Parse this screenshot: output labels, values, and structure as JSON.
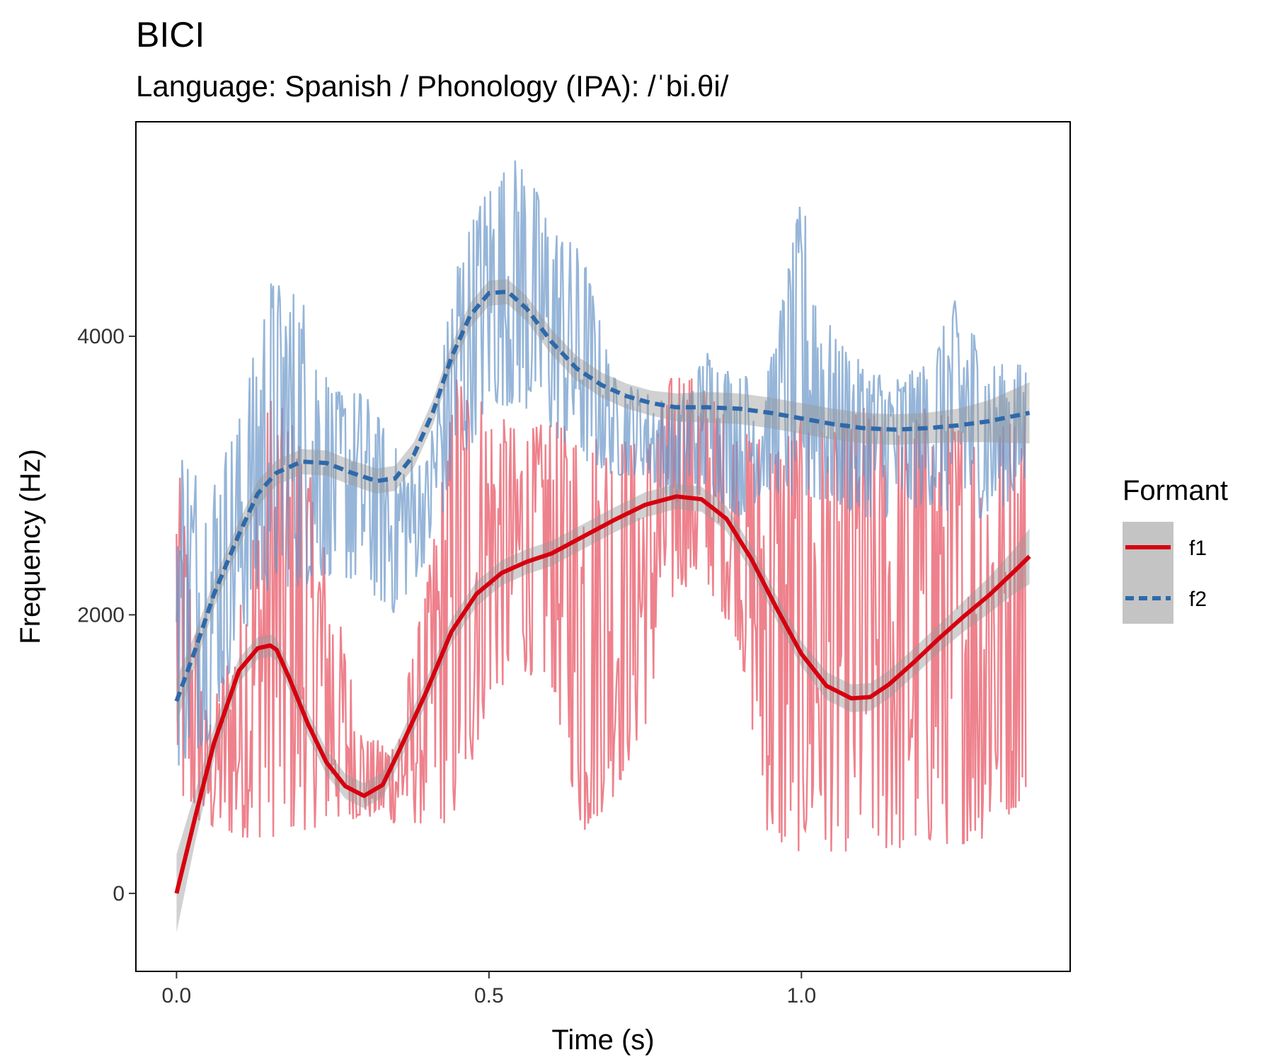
{
  "chart_data": {
    "type": "line",
    "title": "BICI",
    "subtitle": "Language: Spanish / Phonology (IPA): /ˈbi.θi/",
    "xlabel": "Time (s)",
    "ylabel": "Frequency (Hz)",
    "xlim": [
      -0.065,
      1.43
    ],
    "ylim": [
      -560,
      5540
    ],
    "x_ticks": [
      0.0,
      0.5,
      1.0
    ],
    "x_tick_labels": [
      "0.0",
      "0.5",
      "1.0"
    ],
    "y_ticks": [
      0,
      2000,
      4000
    ],
    "y_tick_labels": [
      "0",
      "2000",
      "4000"
    ],
    "grid": false,
    "legend": {
      "title": "Formant",
      "position": "right",
      "entries": [
        "f1",
        "f2"
      ]
    },
    "colors": {
      "f1": "#d7000f",
      "f2": "#2e69aa",
      "f1_raw": "#e8505f",
      "f2_raw": "#6a96c8",
      "band": "#999999"
    },
    "series": [
      {
        "name": "f1",
        "line_style": "solid",
        "raw_envelope": {
          "x": [
            0.0,
            0.05,
            0.1,
            0.15,
            0.2,
            0.25,
            0.3,
            0.35,
            0.4,
            0.45,
            0.5,
            0.55,
            0.6,
            0.65,
            0.7,
            0.75,
            0.8,
            0.85,
            0.9,
            0.95,
            1.0,
            1.05,
            1.1,
            1.15,
            1.2,
            1.25,
            1.3,
            1.36
          ],
          "low": [
            600,
            450,
            400,
            400,
            450,
            500,
            550,
            500,
            500,
            500,
            1400,
            1600,
            1500,
            400,
            700,
            1200,
            2200,
            2200,
            1800,
            300,
            300,
            300,
            300,
            300,
            350,
            350,
            400,
            700
          ],
          "high": [
            3200,
            1200,
            2000,
            3600,
            3300,
            2200,
            1100,
            1100,
            2200,
            3800,
            3500,
            3300,
            3400,
            3300,
            3300,
            3200,
            3800,
            3600,
            3300,
            3300,
            3400,
            3300,
            3500,
            3300,
            3500,
            3400,
            3300,
            3500
          ]
        },
        "smooth": {
          "x": [
            0.0,
            0.03,
            0.06,
            0.1,
            0.13,
            0.15,
            0.16,
            0.18,
            0.21,
            0.24,
            0.27,
            0.3,
            0.33,
            0.36,
            0.4,
            0.44,
            0.48,
            0.52,
            0.56,
            0.6,
            0.65,
            0.7,
            0.75,
            0.8,
            0.84,
            0.88,
            0.92,
            0.96,
            1.0,
            1.04,
            1.08,
            1.11,
            1.14,
            1.18,
            1.22,
            1.26,
            1.3,
            1.34,
            1.365
          ],
          "y": [
            0,
            550,
            1080,
            1600,
            1760,
            1780,
            1750,
            1550,
            1220,
            940,
            770,
            700,
            780,
            1060,
            1450,
            1880,
            2150,
            2300,
            2380,
            2440,
            2560,
            2680,
            2790,
            2850,
            2830,
            2690,
            2400,
            2050,
            1720,
            1490,
            1400,
            1410,
            1500,
            1660,
            1830,
            1990,
            2140,
            2310,
            2420
          ]
        },
        "ci_halfwidth": [
          280,
          180,
          120,
          90,
          80,
          80,
          80,
          85,
          90,
          90,
          90,
          90,
          90,
          90,
          90,
          90,
          90,
          90,
          90,
          90,
          90,
          90,
          90,
          90,
          90,
          90,
          90,
          90,
          90,
          100,
          100,
          100,
          100,
          100,
          100,
          110,
          130,
          160,
          200
        ]
      },
      {
        "name": "f2",
        "line_style": "dashed",
        "raw_envelope": {
          "x": [
            0.0,
            0.05,
            0.1,
            0.15,
            0.2,
            0.25,
            0.3,
            0.35,
            0.4,
            0.45,
            0.5,
            0.55,
            0.6,
            0.65,
            0.7,
            0.75,
            0.8,
            0.85,
            0.9,
            0.95,
            1.0,
            1.05,
            1.1,
            1.15,
            1.2,
            1.25,
            1.3,
            1.36
          ],
          "low": [
            900,
            1100,
            1800,
            2200,
            2200,
            2300,
            2200,
            2000,
            2400,
            3000,
            3500,
            3500,
            3300,
            3100,
            3000,
            3000,
            2800,
            2900,
            2700,
            2900,
            2800,
            2800,
            2700,
            2700,
            2800,
            2700,
            2700,
            2900
          ],
          "high": [
            3300,
            2900,
            3400,
            4400,
            4300,
            3600,
            3600,
            3200,
            3100,
            4600,
            5100,
            5300,
            4800,
            4600,
            3700,
            3600,
            3500,
            3900,
            3700,
            3800,
            5000,
            4000,
            3800,
            3700,
            3800,
            4300,
            3800,
            3800
          ]
        },
        "smooth": {
          "x": [
            0.0,
            0.03,
            0.06,
            0.1,
            0.13,
            0.16,
            0.2,
            0.24,
            0.28,
            0.32,
            0.35,
            0.38,
            0.41,
            0.44,
            0.47,
            0.5,
            0.53,
            0.56,
            0.6,
            0.64,
            0.68,
            0.72,
            0.76,
            0.8,
            0.85,
            0.9,
            0.95,
            1.0,
            1.05,
            1.1,
            1.15,
            1.2,
            1.25,
            1.3,
            1.365
          ],
          "y": [
            1380,
            1750,
            2150,
            2580,
            2870,
            3020,
            3100,
            3090,
            3020,
            2960,
            2980,
            3150,
            3450,
            3850,
            4150,
            4310,
            4320,
            4200,
            3960,
            3770,
            3650,
            3570,
            3520,
            3490,
            3490,
            3480,
            3450,
            3410,
            3370,
            3340,
            3330,
            3340,
            3360,
            3390,
            3450
          ]
        },
        "ci_halfwidth": [
          160,
          120,
          100,
          90,
          90,
          90,
          90,
          90,
          90,
          90,
          90,
          90,
          90,
          90,
          90,
          90,
          90,
          90,
          90,
          90,
          90,
          90,
          90,
          100,
          110,
          110,
          110,
          110,
          110,
          110,
          110,
          110,
          120,
          150,
          220
        ]
      }
    ]
  }
}
